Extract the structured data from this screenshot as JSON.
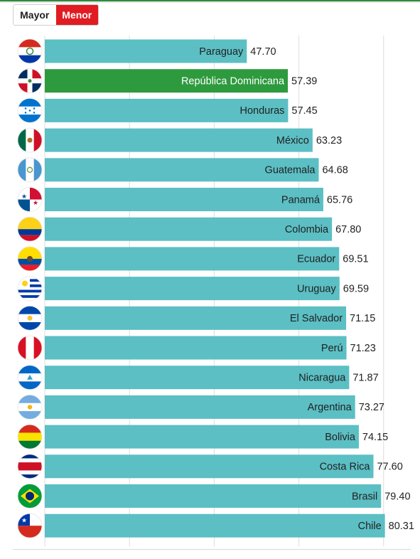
{
  "toggle": {
    "options": [
      {
        "label": "Mayor",
        "active": false
      },
      {
        "label": "Menor",
        "active": true
      }
    ],
    "active_color": "#e11b22"
  },
  "colors": {
    "bar": "#5bbfc4",
    "highlight_bar": "#2e9a3e",
    "grid": "#dddddd",
    "text_dark": "#222222",
    "text_light": "#ffffff"
  },
  "chart_data": {
    "type": "bar",
    "orientation": "horizontal",
    "title": "",
    "xlabel": "",
    "ylabel": "",
    "xlim": [
      0,
      100
    ],
    "grid": true,
    "highlight": "República Dominicana",
    "categories": [
      "Paraguay",
      "República Dominicana",
      "Honduras",
      "México",
      "Guatemala",
      "Panamá",
      "Colombia",
      "Ecuador",
      "Uruguay",
      "El Salvador",
      "Perú",
      "Nicaragua",
      "Argentina",
      "Bolivia",
      "Costa Rica",
      "Brasil",
      "Chile"
    ],
    "values": [
      47.7,
      57.39,
      57.45,
      63.23,
      64.68,
      65.76,
      67.8,
      69.51,
      69.59,
      71.15,
      71.23,
      71.87,
      73.27,
      74.15,
      77.6,
      79.4,
      80.31
    ],
    "value_labels": [
      "47.70",
      "57.39",
      "57.45",
      "63.23",
      "64.68",
      "65.76",
      "67.80",
      "69.51",
      "69.59",
      "71.15",
      "71.23",
      "71.87",
      "73.27",
      "74.15",
      "77.60",
      "79.40",
      "80.31"
    ],
    "flag_icons": [
      "paraguay-flag-icon",
      "dominican-republic-flag-icon",
      "honduras-flag-icon",
      "mexico-flag-icon",
      "guatemala-flag-icon",
      "panama-flag-icon",
      "colombia-flag-icon",
      "ecuador-flag-icon",
      "uruguay-flag-icon",
      "el-salvador-flag-icon",
      "peru-flag-icon",
      "nicaragua-flag-icon",
      "argentina-flag-icon",
      "bolivia-flag-icon",
      "costa-rica-flag-icon",
      "brazil-flag-icon",
      "chile-flag-icon"
    ]
  }
}
